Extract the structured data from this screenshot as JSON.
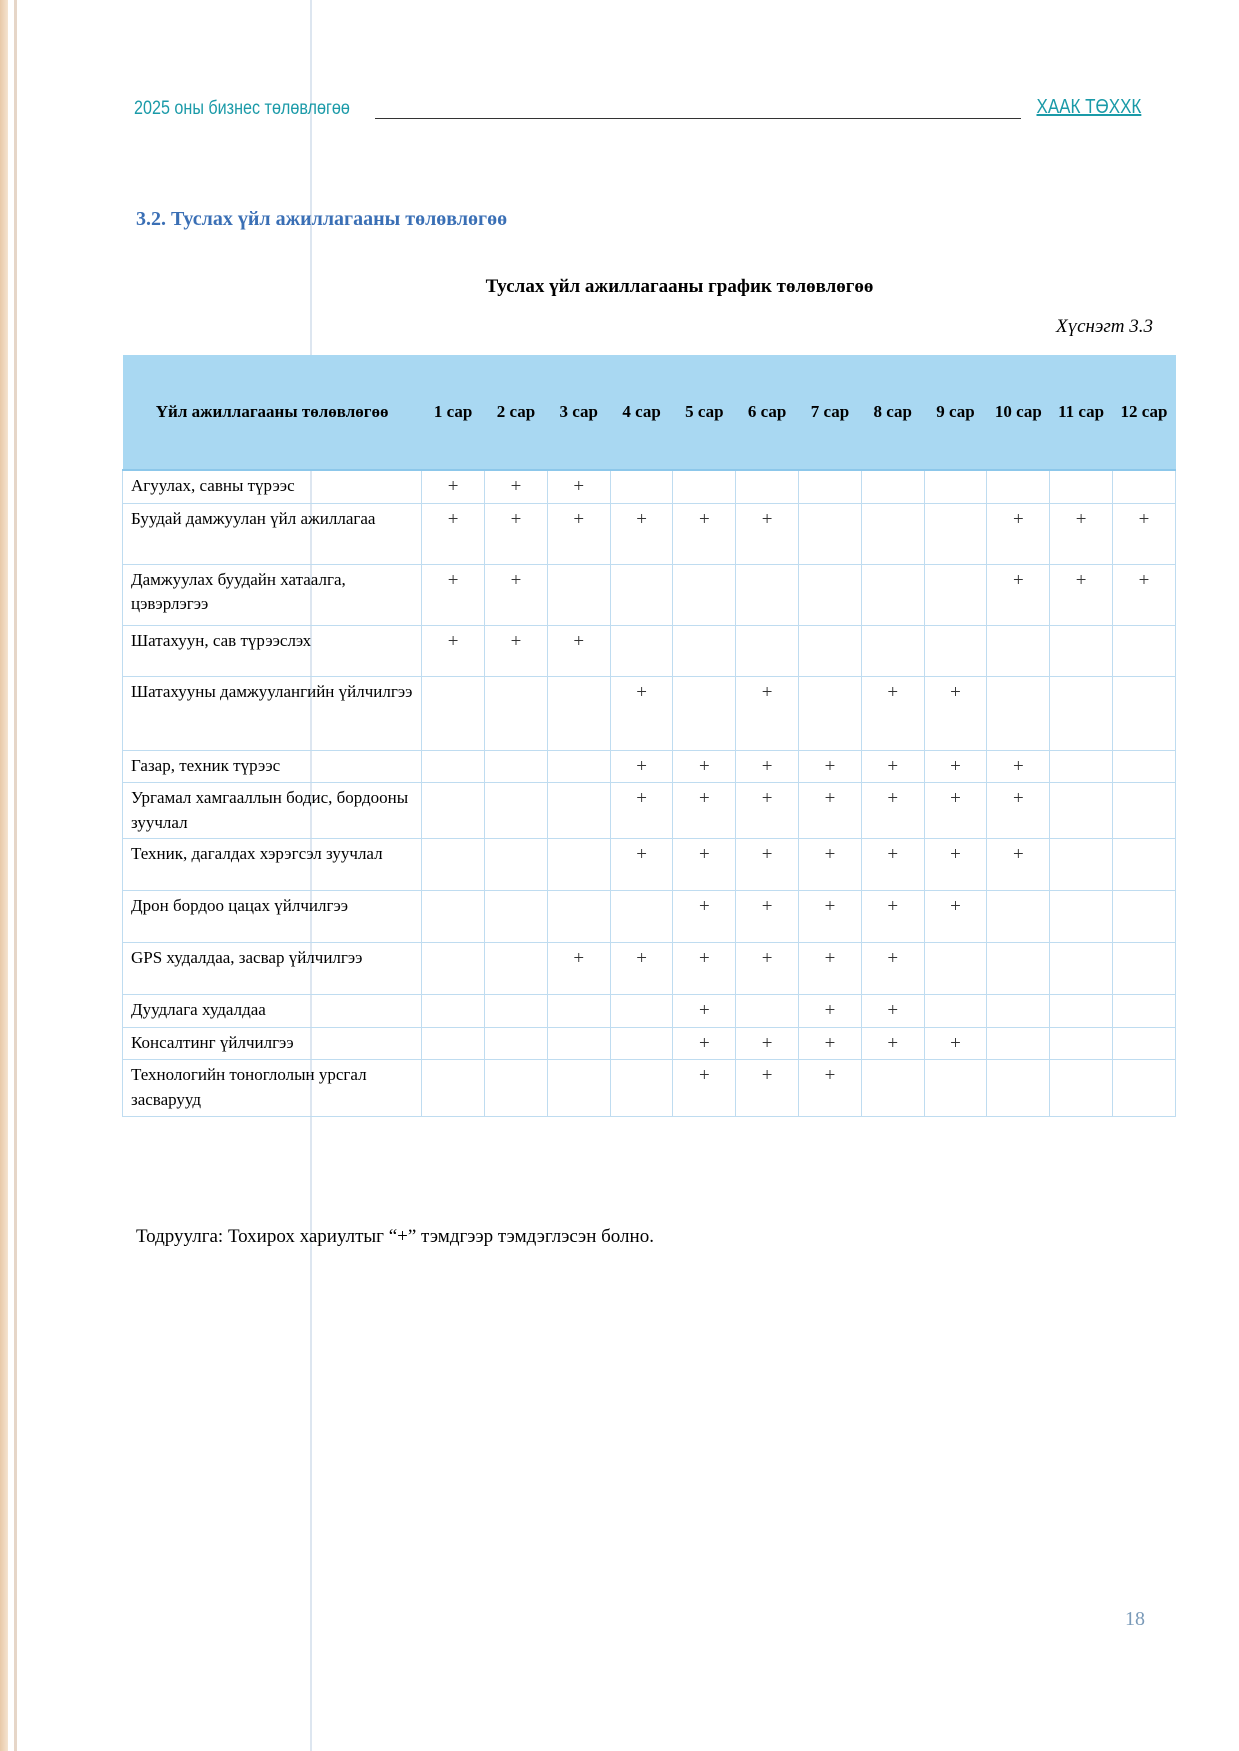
{
  "header": {
    "left": "2025 оны бизнес төлөвлөгөө",
    "right": "ХААК ТӨХХК"
  },
  "section_title": "3.2. Туслах үйл ажиллагааны төлөвлөгөө",
  "table_caption": "Туслах үйл ажиллагааны график төлөвлөгөө",
  "table_number": "Хүснэгт 3.3",
  "table": {
    "columns": [
      "Үйл ажиллагааны төлөвлөгөө",
      "1 сар",
      "2 сар",
      "3 сар",
      "4 сар",
      "5 сар",
      "6 сар",
      "7 сар",
      "8 сар",
      "9 сар",
      "10 сар",
      "11 сар",
      "12 сар"
    ],
    "rows": [
      {
        "activity": "Агуулах, савны түрээс",
        "marks": [
          "+",
          "+",
          "+",
          "",
          "",
          "",
          "",
          "",
          "",
          "",
          "",
          ""
        ]
      },
      {
        "activity": "Буудай дамжуулан үйл ажиллагаа",
        "marks": [
          "+",
          "+",
          "+",
          "+",
          "+",
          "+",
          "",
          "",
          "",
          "+",
          "+",
          "+"
        ]
      },
      {
        "activity": "Дамжуулах буудайн хатаалга, цэвэрлэгээ",
        "marks": [
          "+",
          "+",
          "",
          "",
          "",
          "",
          "",
          "",
          "",
          "+",
          "+",
          "+"
        ]
      },
      {
        "activity": "Шатахуун, сав түрээслэх",
        "marks": [
          "+",
          "+",
          "+",
          "",
          "",
          "",
          "",
          "",
          "",
          "",
          "",
          ""
        ]
      },
      {
        "activity": "Шатахууны дамжуулангийн үйлчилгээ",
        "marks": [
          "",
          "",
          "",
          "+",
          "",
          "+",
          "",
          "+",
          "+",
          "",
          "",
          ""
        ]
      },
      {
        "activity": "Газар, техник түрээс",
        "marks": [
          "",
          "",
          "",
          "+",
          "+",
          "+",
          "+",
          "+",
          "+",
          "+",
          "",
          ""
        ]
      },
      {
        "activity": "Ургамал хамгааллын бодис, бордооны зуучлал",
        "marks": [
          "",
          "",
          "",
          "+",
          "+",
          "+",
          "+",
          "+",
          "+",
          "+",
          "",
          ""
        ]
      },
      {
        "activity": "Техник, дагалдах хэрэгсэл зуучлал",
        "marks": [
          "",
          "",
          "",
          "+",
          "+",
          "+",
          "+",
          "+",
          "+",
          "+",
          "",
          ""
        ]
      },
      {
        "activity": "Дрон бордоо цацах үйлчилгээ",
        "marks": [
          "",
          "",
          "",
          "",
          "+",
          "+",
          "+",
          "+",
          "+",
          "",
          "",
          ""
        ]
      },
      {
        "activity": "GPS худалдаа, засвар үйлчилгээ",
        "marks": [
          "",
          "",
          "+",
          "+",
          "+",
          "+",
          "+",
          "+",
          "",
          "",
          "",
          ""
        ]
      },
      {
        "activity": "Дуудлага худалдаа",
        "marks": [
          "",
          "",
          "",
          "",
          "+",
          "",
          "+",
          "+",
          "",
          "",
          "",
          ""
        ]
      },
      {
        "activity": "Консалтинг үйлчилгээ",
        "marks": [
          "",
          "",
          "",
          "",
          "+",
          "+",
          "+",
          "+",
          "+",
          "",
          "",
          ""
        ]
      },
      {
        "activity": "Технологийн тоноглолын урсгал засварууд",
        "marks": [
          "",
          "",
          "",
          "",
          "+",
          "+",
          "+",
          "",
          "",
          "",
          "",
          ""
        ]
      }
    ]
  },
  "note": "Тодруулга: Тохирох хариултыг “+” тэмдгээр тэмдэглэсэн болно.",
  "page_number": "18"
}
